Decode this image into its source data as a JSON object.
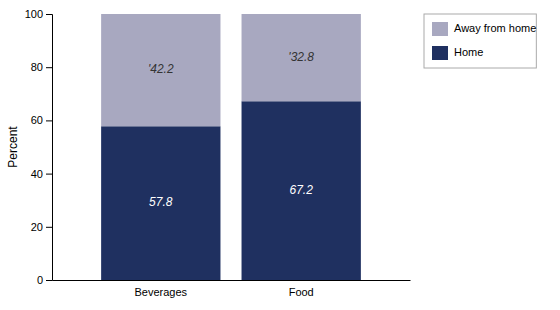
{
  "chart_data": {
    "type": "bar",
    "stacked": true,
    "categories": [
      "Beverages",
      "Food"
    ],
    "series": [
      {
        "name": "Home",
        "color": "#1f3060",
        "values": [
          57.8,
          67.2
        ]
      },
      {
        "name": "Away from home",
        "color": "#a8a8c0",
        "values": [
          42.2,
          32.8
        ],
        "value_labels": [
          "'42.2",
          "'32.8"
        ]
      }
    ],
    "ylabel": "Percent",
    "ylim": [
      0,
      100
    ],
    "yticks": [
      0,
      20,
      40,
      60,
      80,
      100
    ],
    "grid": false,
    "legend": "right",
    "data_labels": true
  }
}
